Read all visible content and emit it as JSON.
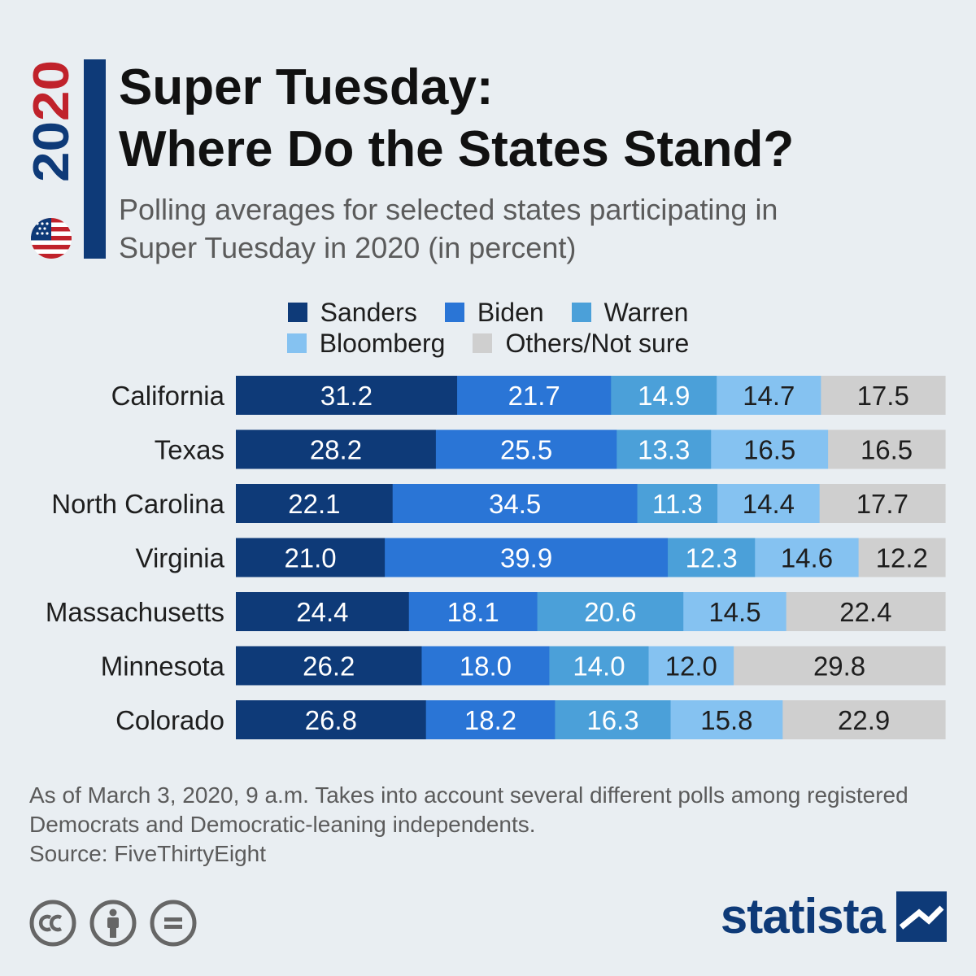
{
  "badge": {
    "year": "2020"
  },
  "header": {
    "title": "Super Tuesday:\nWhere Do the States Stand?",
    "subtitle": "Polling averages for selected states participating in\nSuper Tuesday in 2020 (in percent)"
  },
  "colors": {
    "accent_bar": "#0e3a78",
    "year_red": "#c0222b",
    "year_blue": "#0e3a78",
    "label_dark": "#1e1e1e",
    "label_light": "#ffffff"
  },
  "chart_data": {
    "type": "bar",
    "orientation": "horizontal",
    "stacked": true,
    "title": "Super Tuesday: Where Do the States Stand?",
    "subtitle": "Polling averages for selected states participating in Super Tuesday in 2020 (in percent)",
    "xlabel": "",
    "ylabel": "",
    "unit": "percent",
    "grid": false,
    "legend_position": "top",
    "categories": [
      "California",
      "Texas",
      "North Carolina",
      "Virginia",
      "Massachusetts",
      "Minnesota",
      "Colorado"
    ],
    "series": [
      {
        "name": "Sanders",
        "color": "#0e3a78",
        "values": [
          31.2,
          28.2,
          22.1,
          21.0,
          24.4,
          26.2,
          26.8
        ],
        "labels": [
          "31.2",
          "28.2",
          "22.1",
          "21.0",
          "24.4",
          "26.2",
          "26.8"
        ]
      },
      {
        "name": "Biden",
        "color": "#2a75d6",
        "values": [
          21.7,
          25.5,
          34.5,
          39.9,
          18.1,
          18.0,
          18.2
        ],
        "labels": [
          "21.7",
          "25.5",
          "34.5",
          "39.9",
          "18.1",
          "18.0",
          "18.2"
        ]
      },
      {
        "name": "Warren",
        "color": "#4ba0d9",
        "values": [
          14.9,
          13.3,
          11.3,
          12.3,
          20.6,
          14.0,
          16.3
        ],
        "labels": [
          "14.9",
          "13.3",
          "11.3",
          "12.3",
          "20.6",
          "14.0",
          "16.3"
        ]
      },
      {
        "name": "Bloomberg",
        "color": "#85c2f1",
        "values": [
          14.7,
          16.5,
          14.4,
          14.6,
          14.5,
          12.0,
          15.8
        ],
        "labels": [
          "14.7",
          "16.5",
          "14.4",
          "14.6",
          "14.5",
          "12.0",
          "15.8"
        ]
      },
      {
        "name": "Others/Not sure",
        "color": "#cfcfcf",
        "values": [
          17.5,
          16.5,
          17.7,
          12.2,
          22.4,
          29.8,
          22.9
        ],
        "labels": [
          "17.5",
          "16.5",
          "17.7",
          "12.2",
          "22.4",
          "29.8",
          "22.9"
        ]
      }
    ]
  },
  "footnote": {
    "note": "As of March 3, 2020, 9 a.m. Takes into account several different polls among registered Democrats and Democratic-leaning independents.",
    "source": "Source: FiveThirtyEight"
  },
  "license_icons": [
    "creative-commons-icon",
    "attribution-icon",
    "no-derivatives-icon"
  ],
  "brand": {
    "name": "statista"
  }
}
